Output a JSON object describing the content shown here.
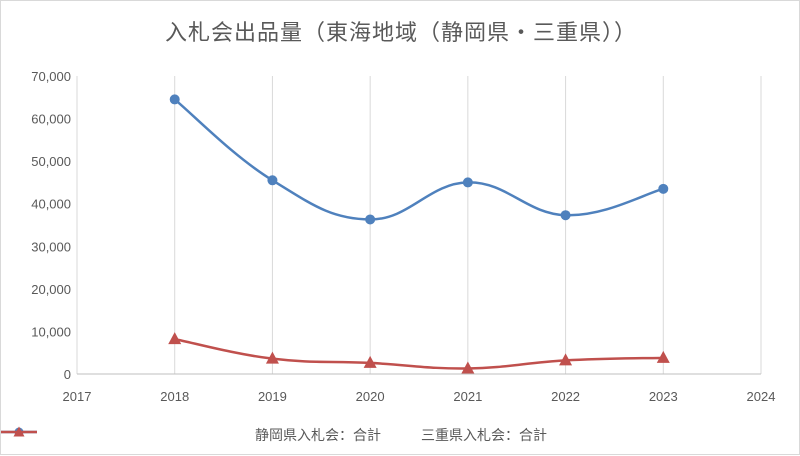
{
  "chart_data": {
    "type": "line",
    "title": "入札会出品量（東海地域（静岡県・三重県））",
    "xlabel": "",
    "ylabel": "",
    "x": [
      2018,
      2019,
      2020,
      2021,
      2022,
      2023
    ],
    "xlim": [
      2017,
      2024
    ],
    "xticks": [
      "2017",
      "2018",
      "2019",
      "2020",
      "2021",
      "2022",
      "2023",
      "2024"
    ],
    "ylim": [
      0,
      70000
    ],
    "yticks": [
      "0",
      "10,000",
      "20,000",
      "30,000",
      "40,000",
      "50,000",
      "60,000",
      "70,000"
    ],
    "grid": "vertical",
    "legend_position": "bottom",
    "series": [
      {
        "name": "静岡県入札会：合計",
        "values": [
          64500,
          45500,
          36300,
          45000,
          37300,
          43500
        ],
        "color": "#4f81bd",
        "marker": "circle"
      },
      {
        "name": "三重県入札会：合計",
        "values": [
          8200,
          3600,
          2600,
          1300,
          3200,
          3800
        ],
        "color": "#c0504d",
        "marker": "triangle"
      }
    ]
  }
}
